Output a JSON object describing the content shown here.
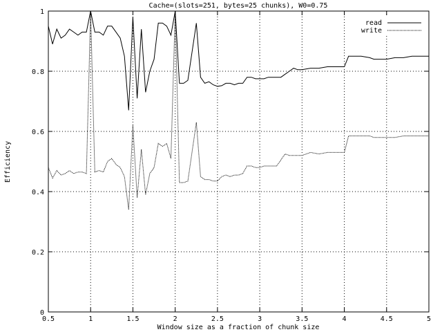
{
  "chart_data": {
    "type": "line",
    "title": "Cache=(slots=251, bytes=25 chunks), W0=0.75",
    "xlabel": "Window size as a fraction of chunk size",
    "ylabel": "Efficiency",
    "xlim": [
      0.5,
      5
    ],
    "ylim": [
      0,
      1
    ],
    "xticks": [
      "0.5",
      "1",
      "1.5",
      "2",
      "2.5",
      "3",
      "3.5",
      "4",
      "4.5",
      "5"
    ],
    "yticks": [
      "0",
      "0.2",
      "0.4",
      "0.6",
      "0.8",
      "1"
    ],
    "grid": true,
    "legend_position": "top-right",
    "series": [
      {
        "name": "read",
        "style": "solid",
        "x": [
          0.5,
          0.55,
          0.6,
          0.65,
          0.7,
          0.75,
          0.8,
          0.85,
          0.9,
          0.95,
          1.0,
          1.05,
          1.1,
          1.15,
          1.2,
          1.25,
          1.3,
          1.35,
          1.4,
          1.45,
          1.5,
          1.55,
          1.6,
          1.65,
          1.7,
          1.75,
          1.8,
          1.85,
          1.9,
          1.95,
          2.0,
          2.05,
          2.1,
          2.15,
          2.25,
          2.3,
          2.35,
          2.4,
          2.45,
          2.5,
          2.55,
          2.6,
          2.65,
          2.7,
          2.75,
          2.8,
          2.85,
          2.9,
          2.95,
          3.0,
          3.05,
          3.1,
          3.15,
          3.2,
          3.25,
          3.3,
          3.35,
          3.4,
          3.45,
          3.5,
          3.6,
          3.7,
          3.8,
          3.9,
          4.0,
          4.05,
          4.2,
          4.3,
          4.35,
          4.5,
          4.6,
          4.7,
          4.8,
          4.9,
          5.0
        ],
        "y": [
          0.95,
          0.89,
          0.94,
          0.91,
          0.92,
          0.94,
          0.93,
          0.92,
          0.93,
          0.93,
          1.0,
          0.93,
          0.93,
          0.92,
          0.95,
          0.95,
          0.93,
          0.91,
          0.85,
          0.67,
          0.98,
          0.71,
          0.94,
          0.73,
          0.8,
          0.84,
          0.96,
          0.96,
          0.95,
          0.92,
          1.0,
          0.76,
          0.76,
          0.77,
          0.96,
          0.78,
          0.76,
          0.765,
          0.755,
          0.75,
          0.752,
          0.76,
          0.76,
          0.755,
          0.76,
          0.76,
          0.78,
          0.78,
          0.775,
          0.775,
          0.775,
          0.78,
          0.78,
          0.78,
          0.78,
          0.79,
          0.8,
          0.81,
          0.805,
          0.805,
          0.81,
          0.81,
          0.815,
          0.815,
          0.815,
          0.85,
          0.85,
          0.845,
          0.84,
          0.84,
          0.845,
          0.845,
          0.85,
          0.85,
          0.85
        ]
      },
      {
        "name": "write",
        "style": "dotted",
        "x": [
          0.5,
          0.55,
          0.6,
          0.65,
          0.7,
          0.75,
          0.8,
          0.85,
          0.9,
          0.95,
          1.0,
          1.05,
          1.1,
          1.15,
          1.2,
          1.25,
          1.3,
          1.35,
          1.4,
          1.45,
          1.5,
          1.55,
          1.6,
          1.65,
          1.7,
          1.75,
          1.8,
          1.85,
          1.9,
          1.95,
          2.0,
          2.05,
          2.1,
          2.15,
          2.25,
          2.3,
          2.35,
          2.4,
          2.45,
          2.5,
          2.55,
          2.6,
          2.65,
          2.7,
          2.75,
          2.8,
          2.85,
          2.9,
          2.95,
          3.0,
          3.05,
          3.1,
          3.15,
          3.2,
          3.3,
          3.35,
          3.4,
          3.5,
          3.6,
          3.7,
          3.8,
          4.0,
          4.05,
          4.2,
          4.3,
          4.35,
          4.5,
          4.6,
          4.7,
          4.8,
          4.9,
          5.0
        ],
        "y": [
          0.48,
          0.445,
          0.47,
          0.455,
          0.46,
          0.47,
          0.46,
          0.465,
          0.465,
          0.46,
          1.0,
          0.465,
          0.47,
          0.465,
          0.5,
          0.51,
          0.49,
          0.48,
          0.45,
          0.34,
          0.62,
          0.38,
          0.54,
          0.39,
          0.46,
          0.48,
          0.56,
          0.55,
          0.56,
          0.51,
          1.0,
          0.43,
          0.43,
          0.435,
          0.63,
          0.45,
          0.44,
          0.44,
          0.435,
          0.435,
          0.45,
          0.455,
          0.45,
          0.455,
          0.455,
          0.46,
          0.485,
          0.485,
          0.48,
          0.48,
          0.485,
          0.485,
          0.485,
          0.485,
          0.525,
          0.52,
          0.52,
          0.52,
          0.53,
          0.525,
          0.53,
          0.53,
          0.585,
          0.585,
          0.585,
          0.58,
          0.58,
          0.58,
          0.585,
          0.585,
          0.585,
          0.585
        ]
      }
    ]
  }
}
